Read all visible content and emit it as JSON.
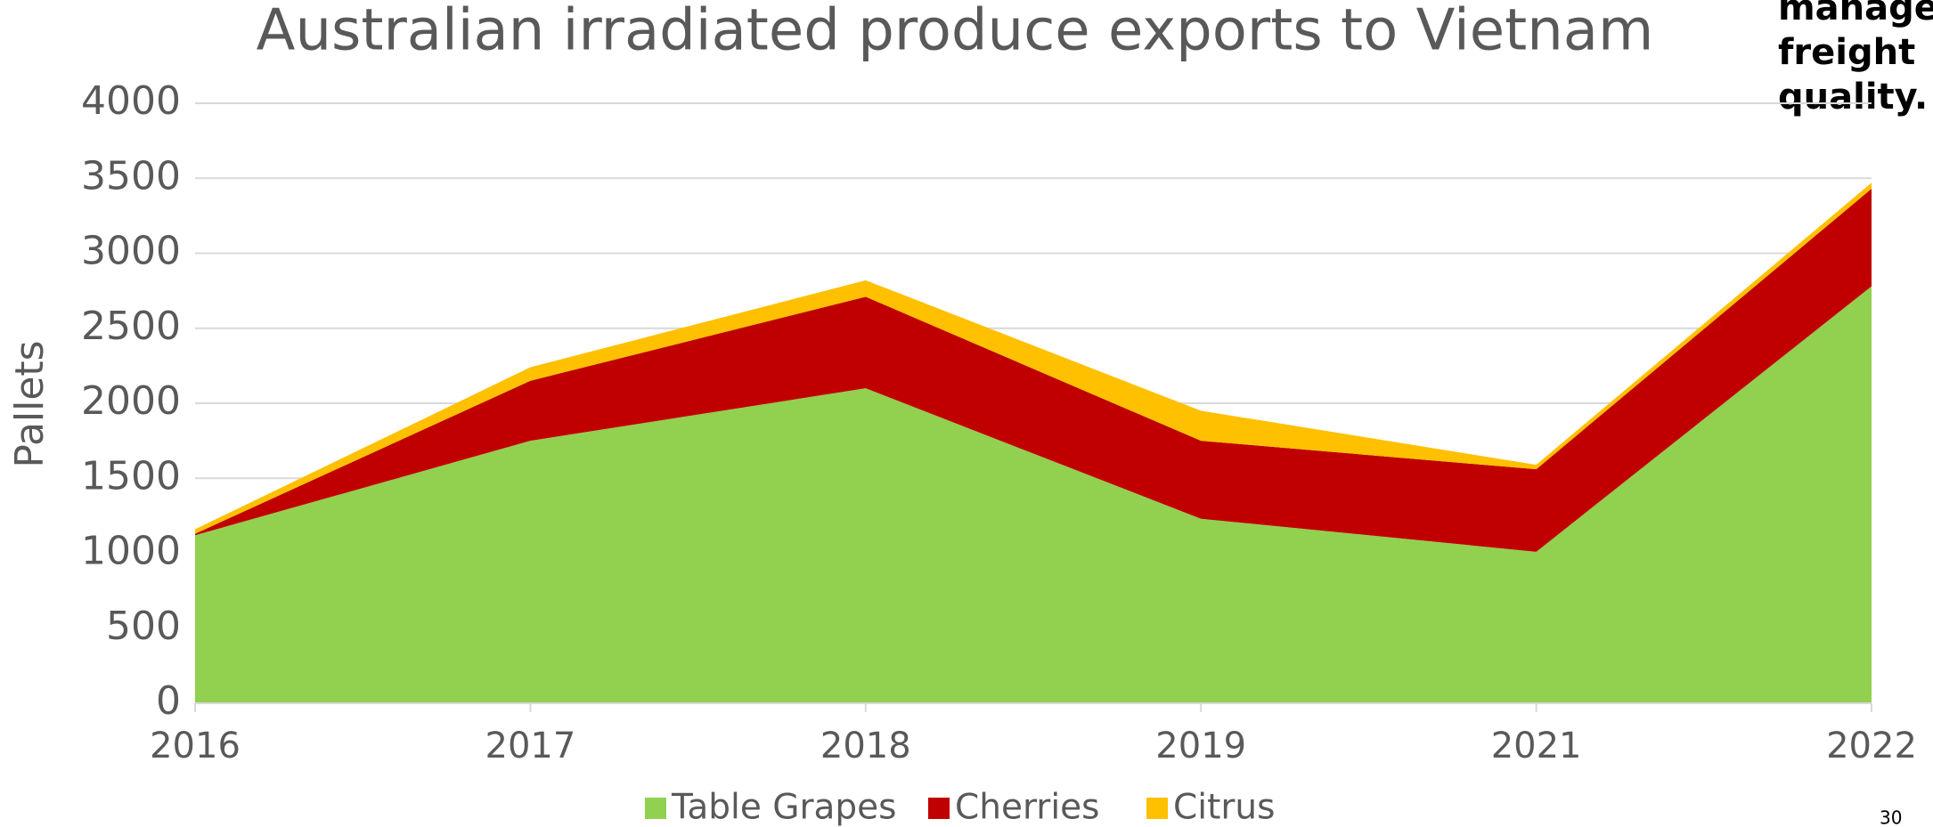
{
  "chart_data": {
    "type": "stacked_area",
    "title": "Australian irradiated produce exports to Vietnam",
    "y_label": "Pallets",
    "categories": [
      "2016",
      "2017",
      "2018",
      "2019",
      "2021",
      "2022"
    ],
    "series": [
      {
        "name": "Table Grapes",
        "color": "#92d050",
        "values": [
          1120,
          1750,
          2100,
          1230,
          1010,
          2780
        ]
      },
      {
        "name": "Cherries",
        "color": "#c00000",
        "values": [
          10,
          400,
          610,
          520,
          550,
          650
        ]
      },
      {
        "name": "Citrus",
        "color": "#ffc000",
        "values": [
          30,
          90,
          110,
          200,
          30,
          40
        ]
      }
    ],
    "ylim": [
      0,
      4000
    ],
    "yticks": [
      0,
      500,
      1000,
      1500,
      2000,
      2500,
      3000,
      3500,
      4000
    ],
    "grid": true,
    "legend": "bottom"
  },
  "side_text": [
    "manage",
    "freight",
    "quality."
  ],
  "page_number": "30"
}
